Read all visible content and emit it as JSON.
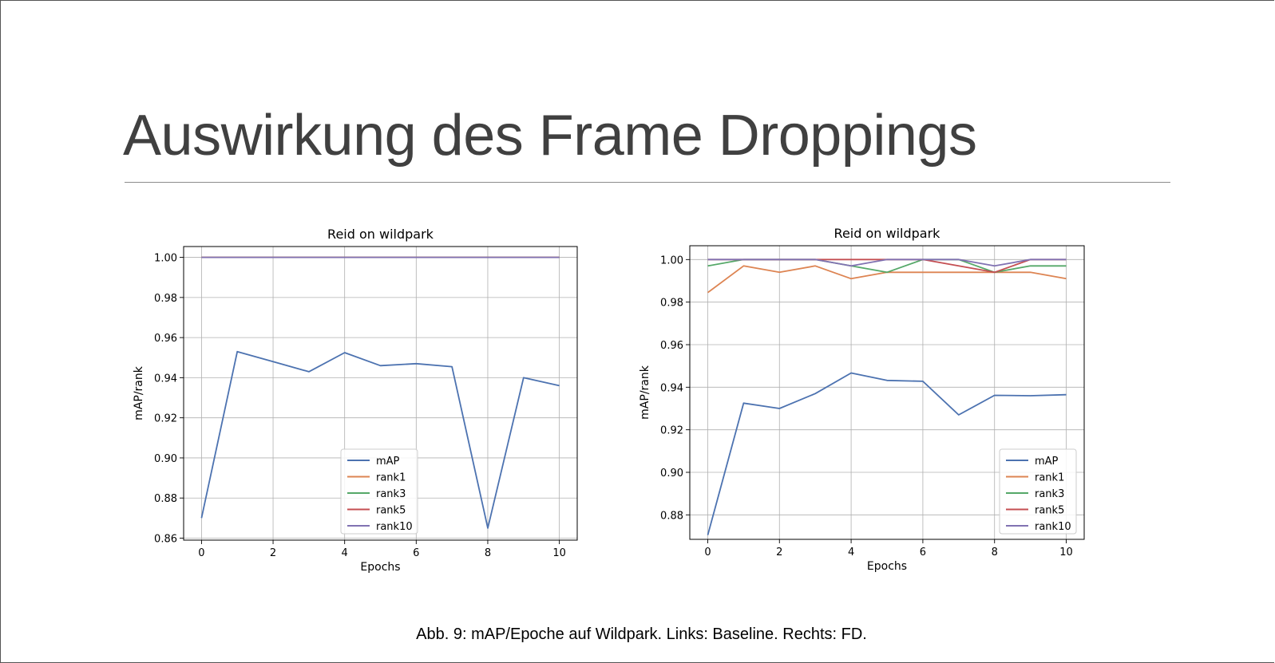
{
  "slide": {
    "title": "Auswirkung des Frame Droppings",
    "caption": "Abb. 9: mAP/Epoche auf Wildpark. Links: Baseline. Rechts: FD."
  },
  "colors": {
    "mAP": "#4c72b0",
    "rank1": "#dd8452",
    "rank3": "#55a868",
    "rank5": "#c44e52",
    "rank10": "#8172b2"
  },
  "chart_data": [
    {
      "type": "line",
      "title": "Reid on wildpark",
      "xlabel": "Epochs",
      "ylabel": "mAP/rank",
      "x": [
        0,
        1,
        2,
        3,
        4,
        5,
        6,
        7,
        8,
        9,
        10
      ],
      "xticks": [
        "0",
        "2",
        "4",
        "6",
        "8",
        "10"
      ],
      "yticks": [
        "0.86",
        "0.88",
        "0.90",
        "0.92",
        "0.94",
        "0.96",
        "0.98",
        "1.00"
      ],
      "ylim": [
        0.859,
        1.0054
      ],
      "xlim": [
        -0.5,
        10.5
      ],
      "grid": true,
      "legend_position": "lower-center",
      "series": [
        {
          "name": "mAP",
          "values": [
            0.87,
            0.953,
            0.948,
            0.943,
            0.9525,
            0.946,
            0.947,
            0.9455,
            0.865,
            0.94,
            0.936
          ]
        },
        {
          "name": "rank1",
          "values": [
            1.0,
            1.0,
            1.0,
            1.0,
            1.0,
            1.0,
            1.0,
            1.0,
            1.0,
            1.0,
            1.0
          ]
        },
        {
          "name": "rank3",
          "values": [
            1.0,
            1.0,
            1.0,
            1.0,
            1.0,
            1.0,
            1.0,
            1.0,
            1.0,
            1.0,
            1.0
          ]
        },
        {
          "name": "rank5",
          "values": [
            1.0,
            1.0,
            1.0,
            1.0,
            1.0,
            1.0,
            1.0,
            1.0,
            1.0,
            1.0,
            1.0
          ]
        },
        {
          "name": "rank10",
          "values": [
            1.0,
            1.0,
            1.0,
            1.0,
            1.0,
            1.0,
            1.0,
            1.0,
            1.0,
            1.0,
            1.0
          ]
        }
      ]
    },
    {
      "type": "line",
      "title": "Reid on wildpark",
      "xlabel": "Epochs",
      "ylabel": "mAP/rank",
      "x": [
        0,
        1,
        2,
        3,
        4,
        5,
        6,
        7,
        8,
        9,
        10
      ],
      "xticks": [
        "0",
        "2",
        "4",
        "6",
        "8",
        "10"
      ],
      "yticks": [
        "0.88",
        "0.90",
        "0.92",
        "0.94",
        "0.96",
        "0.98",
        "1.00"
      ],
      "ylim": [
        0.8685,
        1.0065
      ],
      "xlim": [
        -0.5,
        10.5
      ],
      "grid": true,
      "legend_position": "lower-right",
      "series": [
        {
          "name": "mAP",
          "values": [
            0.8705,
            0.9325,
            0.93,
            0.937,
            0.9467,
            0.9432,
            0.9428,
            0.927,
            0.9362,
            0.936,
            0.9365
          ]
        },
        {
          "name": "rank1",
          "values": [
            0.9845,
            0.997,
            0.994,
            0.997,
            0.991,
            0.994,
            0.994,
            0.994,
            0.994,
            0.994,
            0.991
          ]
        },
        {
          "name": "rank3",
          "values": [
            0.997,
            1.0,
            1.0,
            1.0,
            0.997,
            0.994,
            1.0,
            1.0,
            0.994,
            0.997,
            0.997
          ]
        },
        {
          "name": "rank5",
          "values": [
            1.0,
            1.0,
            1.0,
            1.0,
            1.0,
            1.0,
            1.0,
            0.997,
            0.994,
            1.0,
            1.0
          ]
        },
        {
          "name": "rank10",
          "values": [
            1.0,
            1.0,
            1.0,
            1.0,
            0.997,
            1.0,
            1.0,
            1.0,
            0.997,
            1.0,
            1.0
          ]
        }
      ]
    }
  ]
}
